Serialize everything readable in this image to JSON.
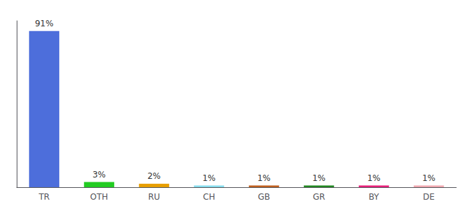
{
  "chart_data": {
    "type": "bar",
    "categories": [
      "TR",
      "OTH",
      "RU",
      "CH",
      "GB",
      "GR",
      "BY",
      "DE"
    ],
    "values": [
      91,
      3,
      2,
      1,
      1,
      1,
      1,
      1
    ],
    "value_labels": [
      "91%",
      "3%",
      "2%",
      "1%",
      "1%",
      "1%",
      "1%",
      "1%"
    ],
    "data_labels": true,
    "colors": [
      "#4d6edb",
      "#22cc22",
      "#e8a000",
      "#88ddee",
      "#c06020",
      "#228822",
      "#e8207a",
      "#f0a8b0"
    ],
    "ylim": [
      0,
      97
    ],
    "tick_labels": "x",
    "grid": false
  }
}
